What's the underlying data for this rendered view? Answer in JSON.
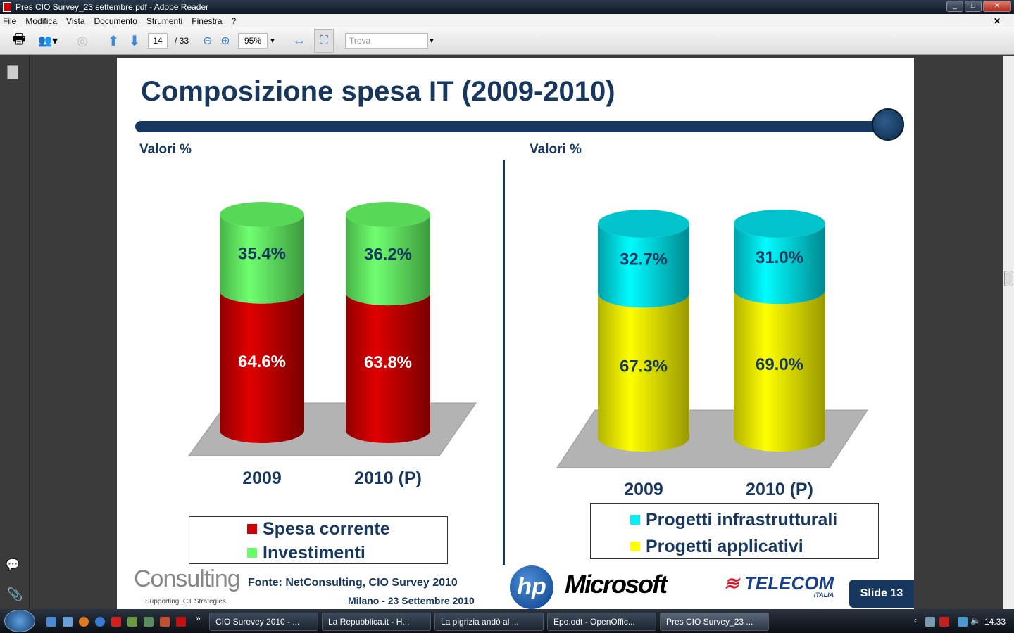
{
  "window": {
    "title": "Pres CIO Survey_23 settembre.pdf - Adobe Reader"
  },
  "menu": [
    "File",
    "Modifica",
    "Vista",
    "Documento",
    "Strumenti",
    "Finestra",
    "?"
  ],
  "toolbar": {
    "page_current": "14",
    "page_total": "/ 33",
    "zoom": "95%",
    "search_placeholder": "Trova"
  },
  "slide": {
    "title": "Composizione spesa IT (2009-2010)",
    "left_label": "Valori %",
    "right_label": "Valori %",
    "source": "Fonte: NetConsulting, CIO Survey 2010",
    "footer": "Milano - 23 Settembre 2010",
    "slide_number": "Slide 13",
    "logos": {
      "netconsulting": "Consulting",
      "netconsulting_tag": "Supporting ICT Strategies",
      "hp": "hp",
      "microsoft": "Microsoft",
      "telecom": "TELECOM",
      "telecom_sub": "ITALIA"
    }
  },
  "chart_data": [
    {
      "type": "bar",
      "stacked": true,
      "style": "3d-cylinder",
      "categories": [
        "2009",
        "2010 (P)"
      ],
      "series": [
        {
          "name": "Spesa corrente",
          "color": "#cc0000",
          "values": [
            64.6,
            63.8
          ]
        },
        {
          "name": "Investimenti",
          "color": "#66ff66",
          "values": [
            35.4,
            36.2
          ]
        }
      ],
      "labels": [
        [
          "64.6%",
          "63.8%"
        ],
        [
          "35.4%",
          "36.2%"
        ]
      ],
      "ylabel": "Valori %",
      "legend": "bottom"
    },
    {
      "type": "bar",
      "stacked": true,
      "style": "3d-cylinder",
      "categories": [
        "2009",
        "2010 (P)"
      ],
      "series": [
        {
          "name": "Progetti applicativi",
          "color": "#ffff00",
          "values": [
            67.3,
            69.0
          ]
        },
        {
          "name": "Progetti infrastrutturali",
          "color": "#00e5f0",
          "values": [
            32.7,
            31.0
          ]
        }
      ],
      "labels": [
        [
          "67.3%",
          "69.0%"
        ],
        [
          "32.7%",
          "31.0%"
        ]
      ],
      "ylabel": "Valori %",
      "legend": "bottom"
    }
  ],
  "taskbar": {
    "tasks": [
      "CIO Surevey 2010 - ...",
      "La Repubblica.it - H...",
      "La pigrizia andò al ...",
      "Epo.odt - OpenOffic...",
      "Pres CIO Survey_23 ..."
    ],
    "clock": "14.33"
  }
}
